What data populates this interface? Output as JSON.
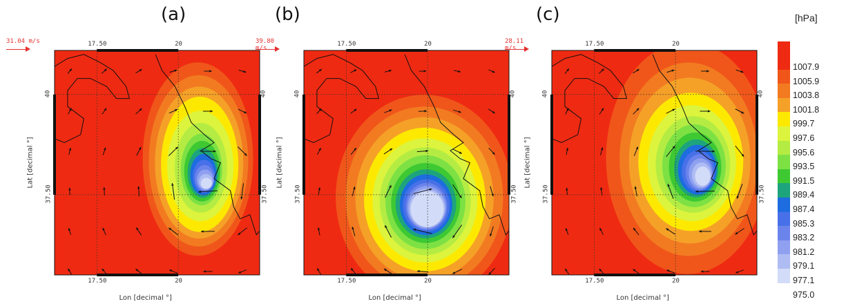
{
  "panels": [
    {
      "label": "(a)",
      "ref_speed": "31.04 m/s",
      "top_ticks": [
        "17.50",
        "20"
      ],
      "bottom_ticks": [
        "17.50",
        "20"
      ],
      "left_ticks": [
        "40",
        "37.50"
      ],
      "right_ticks": [
        "40",
        "37.50"
      ],
      "ylabel": "Lat [decimal °]",
      "xlabel": "Lon [decimal °]"
    },
    {
      "label": "(b)",
      "ref_speed": "39.80 m/s",
      "top_ticks": [
        "17.50",
        "20"
      ],
      "bottom_ticks": [
        "17.50",
        "20"
      ],
      "left_ticks": [
        "40",
        "37.50"
      ],
      "right_ticks": [
        "40",
        "37.50"
      ],
      "ylabel": "Lat [decimal °]",
      "xlabel": "Lon [decimal °]"
    },
    {
      "label": "(c)",
      "ref_speed": "28.11 m/s",
      "top_ticks": [
        "17.50",
        "20"
      ],
      "bottom_ticks": [
        "17.50",
        "20"
      ],
      "left_ticks": [
        "40",
        "37.50"
      ],
      "right_ticks": [
        "40",
        "37.50"
      ],
      "ylabel": "Lat [decimal °]",
      "xlabel": "Lon [decimal °]"
    }
  ],
  "legend": {
    "unit": "[hPa]",
    "levels": [
      "1007.9",
      "1005.9",
      "1003.8",
      "1001.8",
      "999.7",
      "997.6",
      "995.6",
      "993.5",
      "991.5",
      "989.4",
      "987.4",
      "985.3",
      "983.2",
      "981.2",
      "979.1",
      "977.1",
      "975.0"
    ],
    "colors": [
      "#ef2a12",
      "#f0561a",
      "#f27b21",
      "#f5a128",
      "#fde900",
      "#dcf43d",
      "#b5ec43",
      "#7de144",
      "#3ec933",
      "#1ea47c",
      "#1d6ce0",
      "#4870e8",
      "#6b84ec",
      "#8ea0ef",
      "#aebcf3",
      "#d2dbf8"
    ]
  },
  "map": {
    "background_color": "#ef2a12",
    "cyclone_centers_lonlat": [
      [
        20.9,
        37.7
      ],
      [
        20.0,
        37.1
      ],
      [
        20.9,
        37.9
      ]
    ],
    "x_range_lon": [
      16.2,
      22.5
    ],
    "y_range_lat": [
      35.5,
      41.1
    ]
  }
}
